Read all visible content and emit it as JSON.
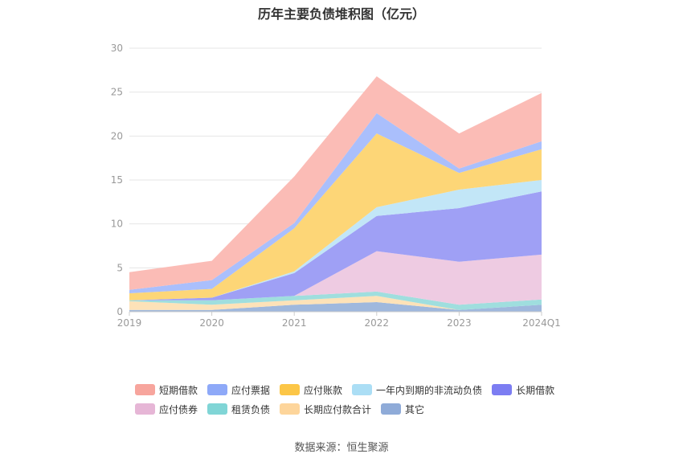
{
  "title": "历年主要负债堆积图（亿元）",
  "source": "数据来源：恒生聚源",
  "chart_data": {
    "type": "area",
    "stacked": true,
    "categories": [
      "2019",
      "2020",
      "2021",
      "2022",
      "2023",
      "2024Q1"
    ],
    "ylim": [
      0,
      30
    ],
    "yticks": [
      "0",
      "5",
      "10",
      "15",
      "20",
      "25",
      "30"
    ],
    "grid": true,
    "legend_position": "bottom",
    "series": [
      {
        "name": "其它",
        "color": "#9fb8dd",
        "values": [
          0.2,
          0.2,
          0.8,
          1.1,
          0.2,
          0.8
        ]
      },
      {
        "name": "长期应付款合计",
        "color": "#fde2b8",
        "values": [
          1.0,
          0.6,
          0.5,
          0.7,
          0.0,
          0.0
        ]
      },
      {
        "name": "租赁负债",
        "color": "#9fdede",
        "values": [
          0.1,
          0.5,
          0.5,
          0.5,
          0.6,
          0.6
        ]
      },
      {
        "name": "应付债券",
        "color": "#eecbe2",
        "values": [
          0.0,
          0.0,
          0.0,
          4.6,
          4.9,
          5.1
        ]
      },
      {
        "name": "长期借款",
        "color": "#9fa0f5",
        "values": [
          0.0,
          0.3,
          2.6,
          4.0,
          6.1,
          7.2
        ]
      },
      {
        "name": "一年内到期的非流动负债",
        "color": "#c2e6f7",
        "values": [
          0.0,
          0.0,
          0.2,
          1.0,
          2.1,
          1.3
        ]
      },
      {
        "name": "应付账款",
        "color": "#fdd677",
        "values": [
          0.8,
          1.0,
          4.9,
          8.4,
          1.9,
          3.5
        ]
      },
      {
        "name": "应付票据",
        "color": "#aabffc",
        "values": [
          0.4,
          1.0,
          0.6,
          2.3,
          0.5,
          0.9
        ]
      },
      {
        "name": "短期借款",
        "color": "#fbbcb6",
        "values": [
          2.0,
          2.2,
          5.3,
          4.2,
          4.0,
          5.5
        ]
      }
    ],
    "legend_order": [
      {
        "name": "短期借款",
        "color": "#f7a59d"
      },
      {
        "name": "应付票据",
        "color": "#8ea9f8"
      },
      {
        "name": "应付账款",
        "color": "#fcc647"
      },
      {
        "name": "一年内到期的非流动负债",
        "color": "#abdef5"
      },
      {
        "name": "长期借款",
        "color": "#7c7df2"
      },
      {
        "name": "应付债券",
        "color": "#e6b6d6"
      },
      {
        "name": "租赁负债",
        "color": "#80d5d6"
      },
      {
        "name": "长期应付款合计",
        "color": "#fdd59b"
      },
      {
        "name": "其它",
        "color": "#8fabd8"
      }
    ]
  }
}
